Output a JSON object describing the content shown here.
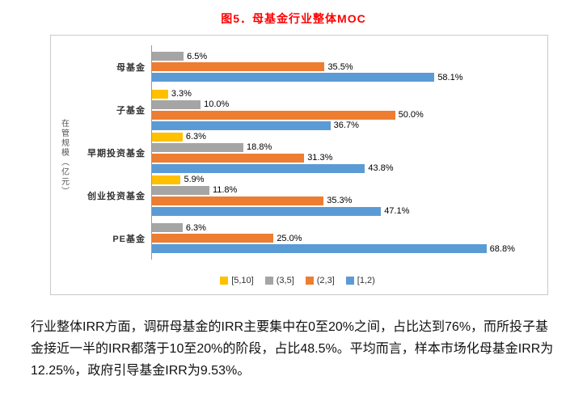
{
  "page": {
    "title": "图5．母基金行业整体MOC",
    "title_color": "#FF0000",
    "paragraph": "行业整体IRR方面，调研母基金的IRR主要集中在0至20%之间，占比达到76%，而所投子基金接近一半的IRR都落于10至20%的阶段，占比48.5%。平均而言，样本市场化母基金IRR为12.25%，政府引导基金IRR为9.53%。"
  },
  "chart_data": {
    "type": "bar",
    "orientation": "horizontal",
    "title": "图5．母基金行业整体MOC",
    "ylabel": "在管规模（亿元）",
    "xlabel": "",
    "xlim": [
      0,
      80
    ],
    "grid": false,
    "legend_position": "bottom",
    "value_suffix": "%",
    "categories": [
      "母基金",
      "子基金",
      "早期投资基金",
      "创业投资基金",
      "PE基金"
    ],
    "series": [
      {
        "name": "[5,10]",
        "color": "#FFC000",
        "values": [
          null,
          3.3,
          6.3,
          5.9,
          null
        ]
      },
      {
        "name": "(3,5]",
        "color": "#A5A5A5",
        "values": [
          6.5,
          10.0,
          18.8,
          11.8,
          6.3
        ]
      },
      {
        "name": "(2,3]",
        "color": "#ED7D31",
        "values": [
          35.5,
          50.0,
          31.3,
          35.3,
          25.0
        ]
      },
      {
        "name": "[1,2)",
        "color": "#5B9BD5",
        "values": [
          58.1,
          36.7,
          43.8,
          47.1,
          68.8
        ]
      }
    ]
  }
}
